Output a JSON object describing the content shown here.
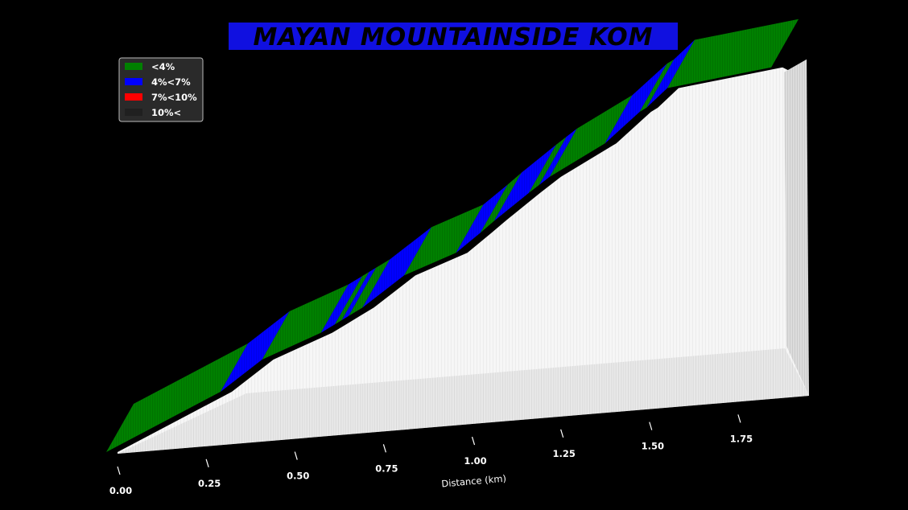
{
  "chart_data": {
    "type": "area",
    "title": "MAYAN MOUNTAINSIDE KOM",
    "title_bg": "#1010e0",
    "xlabel": "Distance (km)",
    "xlim": [
      0,
      1.95
    ],
    "ylim": [
      0,
      105
    ],
    "x_ticks": [
      {
        "value": 0.0,
        "label": "0.00"
      },
      {
        "value": 0.25,
        "label": "0.25"
      },
      {
        "value": 0.5,
        "label": "0.50"
      },
      {
        "value": 0.75,
        "label": "0.75"
      },
      {
        "value": 1.0,
        "label": "1.00"
      },
      {
        "value": 1.25,
        "label": "1.25"
      },
      {
        "value": 1.5,
        "label": "1.50"
      },
      {
        "value": 1.75,
        "label": "1.75"
      }
    ],
    "legend": {
      "placement": "top-left",
      "entries": [
        {
          "label": "<4%",
          "color": "#008000"
        },
        {
          "label": "4%<7%",
          "color": "#0000ff"
        },
        {
          "label": "7%<10%",
          "color": "#ff0000"
        },
        {
          "label": "10%<",
          "color": "#202020"
        }
      ]
    },
    "colors": {
      "fill": "#f4f4f4",
      "side": "#d2d2d2",
      "hatch": "#bdbdbd"
    },
    "profile": [
      {
        "x": 0.0,
        "y": 0,
        "grade": "<4%"
      },
      {
        "x": 0.33,
        "y": 14,
        "grade": "4%<7%"
      },
      {
        "x": 0.45,
        "y": 22,
        "grade": "<4%"
      },
      {
        "x": 0.62,
        "y": 28,
        "grade": "4%<7%"
      },
      {
        "x": 0.66,
        "y": 30,
        "grade": "<4%"
      },
      {
        "x": 0.68,
        "y": 31,
        "grade": "4%<7%"
      },
      {
        "x": 0.7,
        "y": 32,
        "grade": "<4%"
      },
      {
        "x": 0.74,
        "y": 34,
        "grade": "4%<7%"
      },
      {
        "x": 0.86,
        "y": 42,
        "grade": "<4%"
      },
      {
        "x": 1.01,
        "y": 47,
        "grade": "4%<7%"
      },
      {
        "x": 1.08,
        "y": 52,
        "grade": "<4%"
      },
      {
        "x": 1.12,
        "y": 55,
        "grade": "4%<7%"
      },
      {
        "x": 1.22,
        "y": 62,
        "grade": "<4%"
      },
      {
        "x": 1.25,
        "y": 64,
        "grade": "4%<7%"
      },
      {
        "x": 1.28,
        "y": 66,
        "grade": "<4%"
      },
      {
        "x": 1.44,
        "y": 74,
        "grade": "4%<7%"
      },
      {
        "x": 1.54,
        "y": 82,
        "grade": "<4%"
      },
      {
        "x": 1.56,
        "y": 83,
        "grade": "4%<7%"
      },
      {
        "x": 1.62,
        "y": 88,
        "grade": "<4%"
      },
      {
        "x": 1.92,
        "y": 91,
        "grade": null
      }
    ]
  }
}
